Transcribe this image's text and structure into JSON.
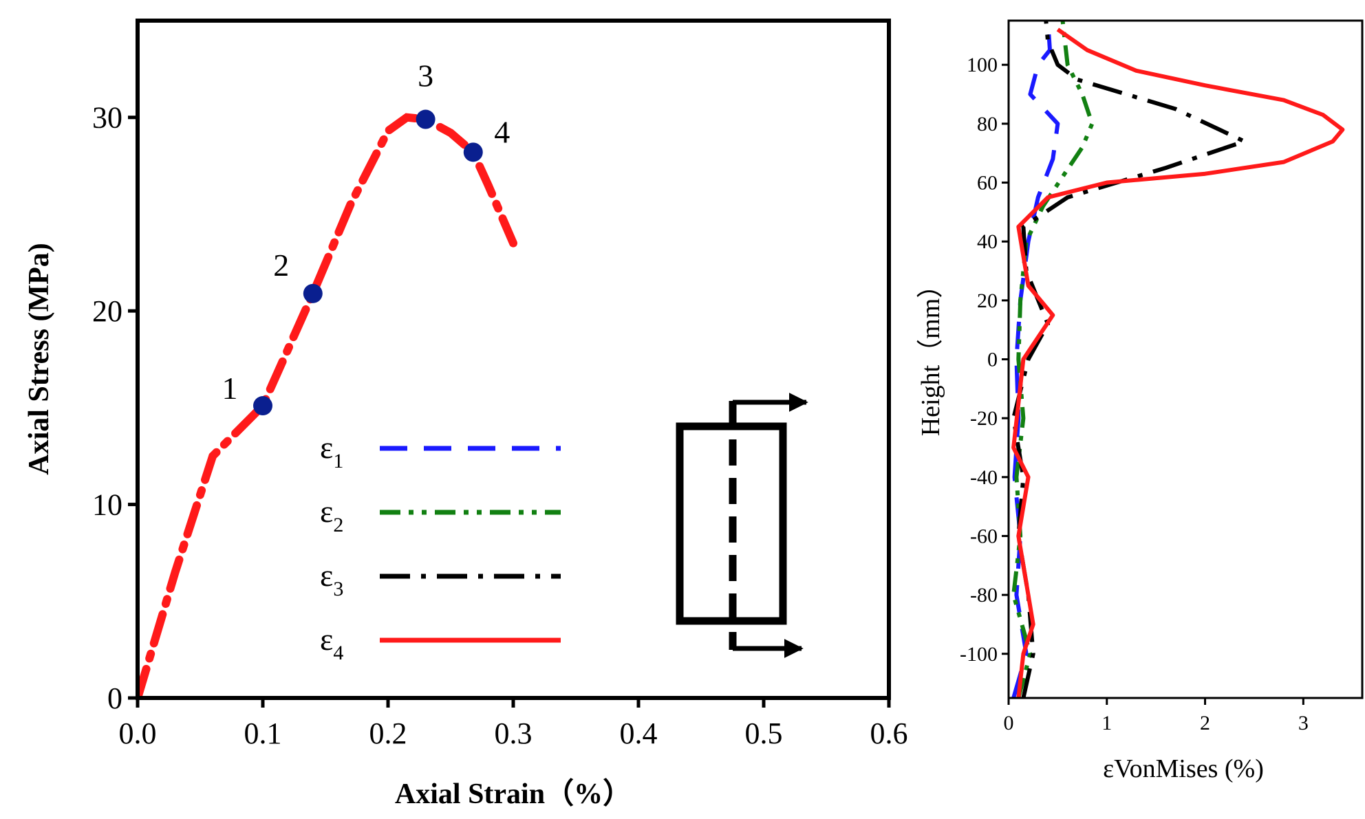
{
  "chart_data": [
    {
      "type": "line",
      "xlabel": "Axial Strain（%）",
      "ylabel": "Axial Stress (MPa)",
      "xlim": [
        0.0,
        0.6
      ],
      "ylim": [
        0,
        35
      ],
      "xticks": [
        "0.0",
        "0.1",
        "0.2",
        "0.3",
        "0.4",
        "0.5",
        "0.6"
      ],
      "yticks": [
        "0",
        "10",
        "20",
        "30"
      ],
      "grid": false,
      "legend_position": "bottom-center",
      "series": [
        {
          "color": "#ff1a1a",
          "style": "dash-dot",
          "x": [
            0.0,
            0.03,
            0.06,
            0.1,
            0.14,
            0.17,
            0.2,
            0.215,
            0.23,
            0.25,
            0.268,
            0.28,
            0.3
          ],
          "y": [
            0,
            6.5,
            12.5,
            15.1,
            20.9,
            25.5,
            29.3,
            30.0,
            29.9,
            29.2,
            28.2,
            26.5,
            23.5
          ]
        }
      ],
      "points": [
        {
          "label": "1",
          "x": 0.1,
          "y": 15.1
        },
        {
          "label": "2",
          "x": 0.14,
          "y": 20.9
        },
        {
          "label": "3",
          "x": 0.23,
          "y": 29.9
        },
        {
          "label": "4",
          "x": 0.268,
          "y": 28.2
        }
      ],
      "point_color": "#0a1f8f",
      "legend": [
        {
          "symbol": "ε",
          "sub": "1",
          "color": "#1a1aff",
          "style": "dashed"
        },
        {
          "symbol": "ε",
          "sub": "2",
          "color": "#128012",
          "style": "dash-dot-dot"
        },
        {
          "symbol": "ε",
          "sub": "3",
          "color": "#000000",
          "style": "dash-dot"
        },
        {
          "symbol": "ε",
          "sub": "4",
          "color": "#ff1a1a",
          "style": "solid"
        }
      ]
    },
    {
      "type": "line",
      "xlabel": "εVonMises (%)",
      "ylabel": "Height（mm）",
      "xlim": [
        0,
        3.6
      ],
      "ylim": [
        -115,
        115
      ],
      "xticks": [
        "0",
        "1",
        "2",
        "3"
      ],
      "yticks": [
        "100",
        "80",
        "60",
        "40",
        "20",
        "0",
        "-20",
        "-40",
        "-60",
        "-80",
        "-100"
      ],
      "grid": false,
      "series": [
        {
          "color": "#1a1aff",
          "style": "dashed",
          "x": [
            0.05,
            0.18,
            0.08,
            0.12,
            0.06,
            0.1,
            0.08,
            0.12,
            0.2,
            0.3,
            0.45,
            0.5,
            0.22,
            0.3,
            0.42,
            0.4
          ],
          "y": [
            -115,
            -100,
            -80,
            -60,
            -40,
            -20,
            0,
            20,
            40,
            55,
            68,
            80,
            90,
            100,
            105,
            115
          ]
        },
        {
          "color": "#128012",
          "style": "dash-dot-dot",
          "x": [
            0.1,
            0.22,
            0.05,
            0.12,
            0.08,
            0.15,
            0.1,
            0.12,
            0.18,
            0.35,
            0.55,
            0.75,
            0.85,
            0.75,
            0.6,
            0.55
          ],
          "y": [
            -115,
            -100,
            -80,
            -60,
            -40,
            -20,
            0,
            20,
            40,
            52,
            62,
            72,
            80,
            90,
            100,
            115
          ]
        },
        {
          "color": "#000000",
          "style": "dash-dot",
          "x": [
            0.15,
            0.25,
            0.2,
            0.1,
            0.15,
            0.05,
            0.2,
            0.4,
            0.18,
            0.15,
            0.6,
            1.6,
            2.4,
            1.7,
            0.7,
            0.5,
            0.4,
            0.38
          ],
          "y": [
            -115,
            -100,
            -80,
            -60,
            -40,
            -20,
            0,
            12,
            30,
            45,
            55,
            65,
            74,
            85,
            95,
            100,
            108,
            115
          ]
        },
        {
          "color": "#ff1a1a",
          "style": "solid",
          "x": [
            0.1,
            0.15,
            0.25,
            0.1,
            0.2,
            0.05,
            0.15,
            0.45,
            0.2,
            0.1,
            0.4,
            1.0,
            2.0,
            2.8,
            3.3,
            3.4,
            3.2,
            2.8,
            2.0,
            1.3,
            0.8,
            0.5
          ],
          "y": [
            -115,
            -100,
            -90,
            -60,
            -40,
            -30,
            0,
            15,
            25,
            45,
            55,
            60,
            63,
            67,
            74,
            78,
            83,
            88,
            93,
            98,
            105,
            112
          ]
        }
      ]
    }
  ],
  "colors": {
    "point": "#0a1f8f",
    "axis": "#000000"
  }
}
